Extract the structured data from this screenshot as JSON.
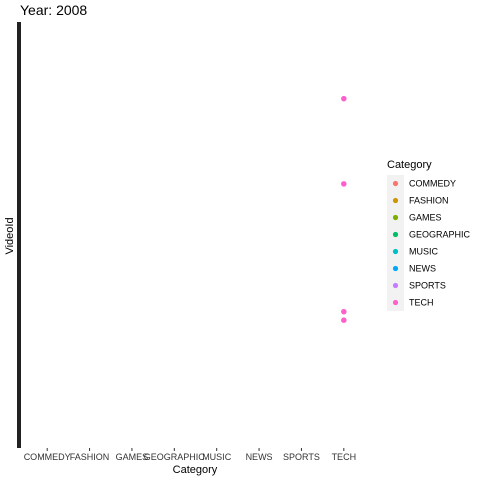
{
  "chart_data": {
    "type": "scatter",
    "title": "Year: 2008",
    "xlabel": "Category",
    "ylabel": "VideoId",
    "categories": [
      "COMMEDY",
      "FASHION",
      "GAMES",
      "GEOGRAPHIC",
      "MUSIC",
      "NEWS",
      "SPORTS",
      "TECH"
    ],
    "legend_title": "Category",
    "legend_position": "right",
    "grid": false,
    "colors": {
      "COMMEDY": "#F8766D",
      "FASHION": "#CD9600",
      "GAMES": "#7CAE00",
      "GEOGRAPHIC": "#00BE67",
      "MUSIC": "#00BFC4",
      "NEWS": "#00A9FF",
      "SPORTS": "#C77CFF",
      "TECH": "#FF61CC"
    },
    "ylim": [
      0,
      1
    ],
    "points": [
      {
        "x": "TECH",
        "y": 0.82
      },
      {
        "x": "TECH",
        "y": 0.62
      },
      {
        "x": "TECH",
        "y": 0.32
      },
      {
        "x": "TECH",
        "y": 0.3
      }
    ]
  }
}
